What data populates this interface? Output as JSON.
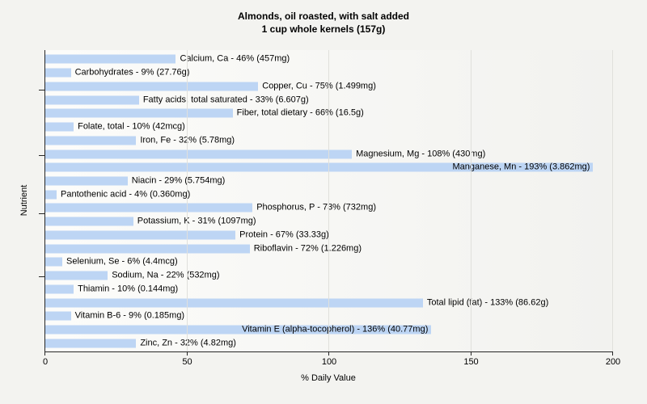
{
  "chart_data": {
    "type": "bar",
    "orientation": "horizontal",
    "title_line1": "Almonds, oil roasted, with salt added",
    "title_line2": "1 cup whole kernels (157g)",
    "xlabel": "% Daily Value",
    "ylabel": "Nutrient",
    "xlim": [
      0,
      200
    ],
    "xticks": [
      0,
      50,
      100,
      150,
      200
    ],
    "grid": "vertical-gridlines-on",
    "legend": "none",
    "categories": [
      "Calcium, Ca",
      "Carbohydrates",
      "Copper, Cu",
      "Fatty acids, total saturated",
      "Fiber, total dietary",
      "Folate, total",
      "Iron, Fe",
      "Magnesium, Mg",
      "Manganese, Mn",
      "Niacin",
      "Pantothenic acid",
      "Phosphorus, P",
      "Potassium, K",
      "Protein",
      "Riboflavin",
      "Selenium, Se",
      "Sodium, Na",
      "Thiamin",
      "Total lipid (fat)",
      "Vitamin B-6",
      "Vitamin E (alpha-tocopherol)",
      "Zinc, Zn"
    ],
    "values": [
      46,
      9,
      75,
      33,
      66,
      10,
      32,
      108,
      193,
      29,
      4,
      73,
      31,
      67,
      72,
      6,
      22,
      10,
      133,
      9,
      136,
      32
    ],
    "amounts": [
      "457mg",
      "27.76g",
      "1.499mg",
      "6.607g",
      "16.5g",
      "42mcg",
      "5.78mg",
      "430mg",
      "3.862mg",
      "5.754mg",
      "0.360mg",
      "732mg",
      "1097mg",
      "33.33g",
      "1.226mg",
      "4.4mcg",
      "532mg",
      "0.144mg",
      "86.62g",
      "0.185mg",
      "40.77mg",
      "4.82mg"
    ],
    "bar_labels": [
      "Calcium, Ca - 46% (457mg)",
      "Carbohydrates - 9% (27.76g)",
      "Copper, Cu - 75% (1.499mg)",
      "Fatty acids, total saturated - 33% (6.607g)",
      "Fiber, total dietary - 66% (16.5g)",
      "Folate, total - 10% (42mcg)",
      "Iron, Fe - 32% (5.78mg)",
      "Magnesium, Mg - 108% (430mg)",
      "Manganese, Mn - 193% (3.862mg)",
      "Niacin - 29% (5.754mg)",
      "Pantothenic acid - 4% (0.360mg)",
      "Phosphorus, P - 73% (732mg)",
      "Potassium, K - 31% (1097mg)",
      "Protein - 67% (33.33g)",
      "Riboflavin - 72% (1.226mg)",
      "Selenium, Se - 6% (4.4mcg)",
      "Sodium, Na - 22% (532mg)",
      "Thiamin - 10% (0.144mg)",
      "Total lipid (fat) - 133% (86.62g)",
      "Vitamin B-6 - 9% (0.185mg)",
      "Vitamin E (alpha-tocopherol) - 136% (40.77mg)",
      "Zinc, Zn - 32% (4.82mg)"
    ],
    "colors": {
      "bar": "#bdd5f4",
      "grid": "#e0e0dc",
      "axis": "#262626",
      "figure_background": "#f3f3f0",
      "text": "#000000"
    }
  }
}
